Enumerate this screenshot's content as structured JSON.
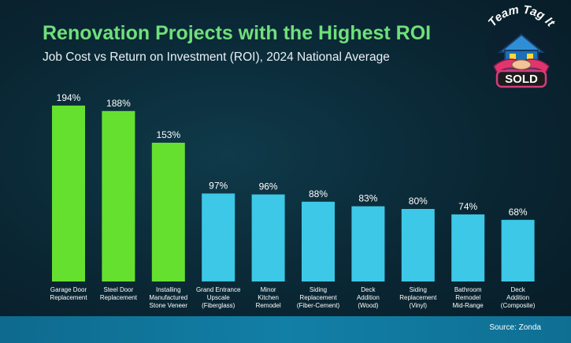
{
  "colors": {
    "highlight": "#66e02f",
    "standard": "#3cc8e6",
    "title": "#6fe07a"
  },
  "logo": {
    "top_text": "Team Tag It",
    "badge_text": "SOLD"
  },
  "footer": {
    "source": "Source: Zonda"
  },
  "chart_data": {
    "type": "bar",
    "title": "Renovation Projects with the Highest ROI",
    "subtitle": "Job Cost vs Return on Investment (ROI), 2024 National Average",
    "xlabel": "",
    "ylabel": "",
    "ylim": [
      0,
      200
    ],
    "grid": false,
    "categories": [
      [
        "Garage Door",
        "Replacement"
      ],
      [
        "Steel Door",
        "Replacement"
      ],
      [
        "Installing",
        "Manufactured",
        "Stone Veneer"
      ],
      [
        "Grand Entrance",
        "Upscale",
        "(Fiberglass)"
      ],
      [
        "Minor",
        "Kitchen",
        "Remodel"
      ],
      [
        "Siding",
        "Replacement",
        "(Fiber-Cement)"
      ],
      [
        "Deck",
        "Addition",
        "(Wood)"
      ],
      [
        "Siding",
        "Replacement",
        "(Vinyl)"
      ],
      [
        "Bathroom",
        "Remodel",
        "Mid-Range"
      ],
      [
        "Deck",
        "Addition",
        "(Composite)"
      ]
    ],
    "values": [
      194,
      188,
      153,
      97,
      96,
      88,
      83,
      80,
      74,
      68
    ],
    "data_labels": [
      "194%",
      "188%",
      "153%",
      "97%",
      "96%",
      "88%",
      "83%",
      "80%",
      "74%",
      "68%"
    ],
    "highlighted": [
      true,
      true,
      true,
      false,
      false,
      false,
      false,
      false,
      false,
      false
    ]
  }
}
